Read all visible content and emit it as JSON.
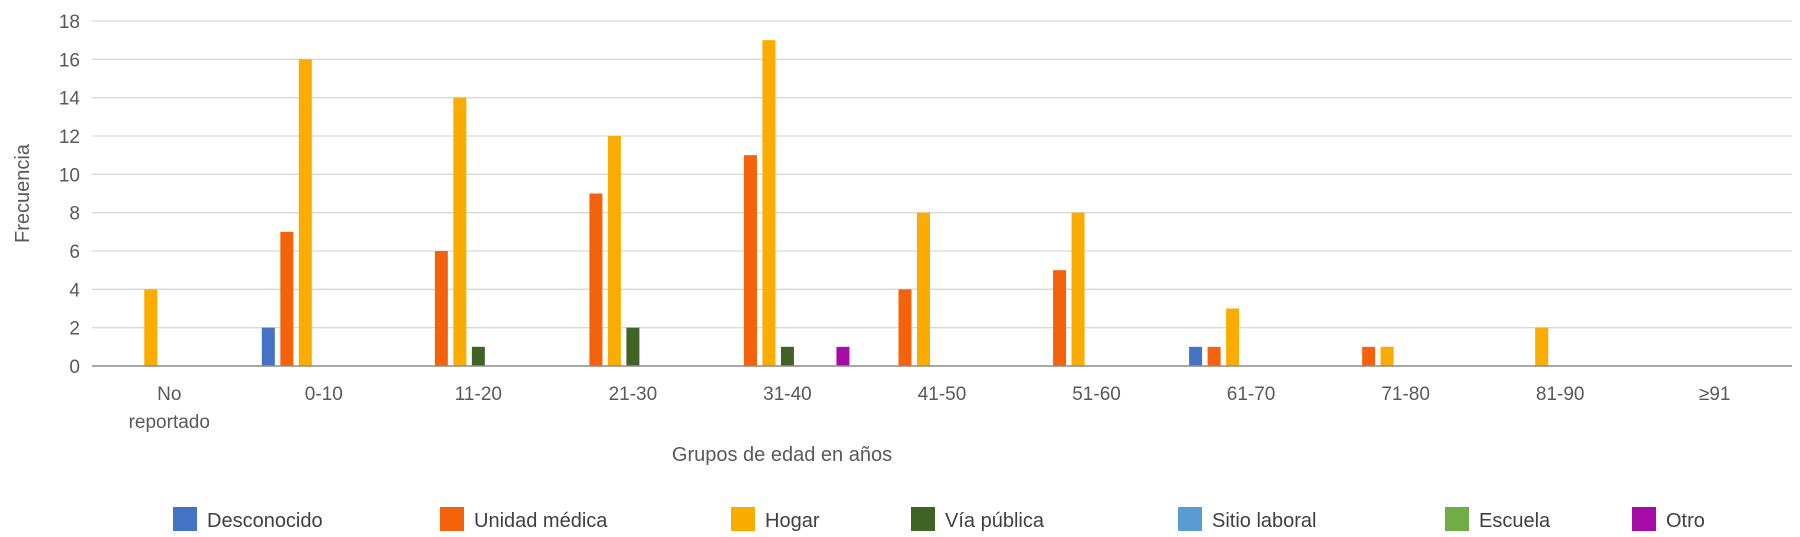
{
  "chart_data": {
    "type": "bar",
    "title": "",
    "xlabel": "Grupos de edad en años",
    "ylabel": "Frecuencia",
    "ylim": [
      0,
      18
    ],
    "yticks": [
      0,
      2,
      4,
      6,
      8,
      10,
      12,
      14,
      16,
      18
    ],
    "grid": true,
    "legend_position": "bottom",
    "categories": [
      [
        "No",
        "reportado"
      ],
      [
        "0-10"
      ],
      [
        "11-20"
      ],
      [
        "21-30"
      ],
      [
        "31-40"
      ],
      [
        "41-50"
      ],
      [
        "51-60"
      ],
      [
        "61-70"
      ],
      [
        "71-80"
      ],
      [
        "81-90"
      ],
      [
        "≥91"
      ]
    ],
    "series": [
      {
        "name": "Desconocido",
        "color": "#4472C4",
        "values": [
          0,
          2,
          0,
          0,
          0,
          0,
          0,
          1,
          0,
          0,
          0
        ]
      },
      {
        "name": "Unidad médica",
        "color": "#F4630C",
        "values": [
          0,
          7,
          6,
          9,
          11,
          4,
          5,
          1,
          1,
          0,
          0
        ]
      },
      {
        "name": "Hogar",
        "color": "#FBAC00",
        "values": [
          4,
          16,
          14,
          12,
          17,
          8,
          8,
          3,
          1,
          2,
          0
        ]
      },
      {
        "name": "Vía pública",
        "color": "#3F6325",
        "values": [
          0,
          0,
          1,
          2,
          1,
          0,
          0,
          0,
          0,
          0,
          0
        ]
      },
      {
        "name": "Sitio laboral",
        "color": "#5B9BD5",
        "values": [
          0,
          0,
          0,
          0,
          0,
          0,
          0,
          0,
          0,
          0,
          0
        ]
      },
      {
        "name": "Escuela",
        "color": "#70AD47",
        "values": [
          0,
          0,
          0,
          0,
          0,
          0,
          0,
          0,
          0,
          0,
          0
        ]
      },
      {
        "name": "Otro",
        "color": "#A50BA5",
        "values": [
          0,
          0,
          0,
          0,
          1,
          0,
          0,
          0,
          0,
          0,
          0
        ]
      }
    ]
  }
}
